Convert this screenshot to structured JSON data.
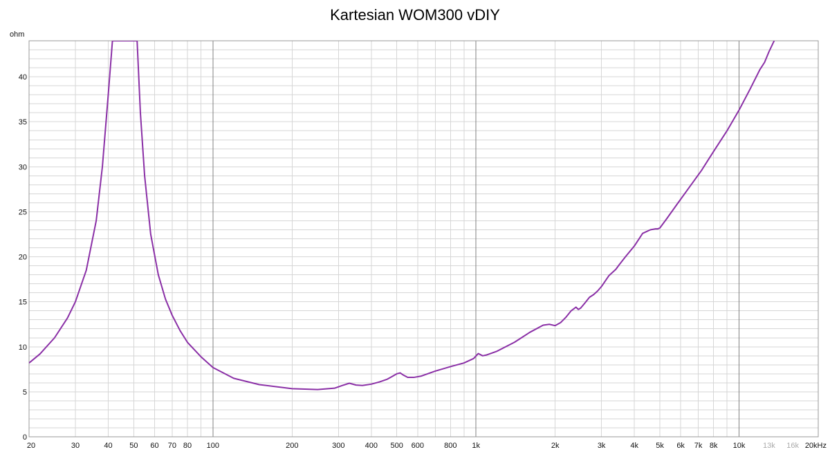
{
  "chart_data": {
    "type": "line",
    "title": "Kartesian WOM300 vDIY",
    "ylabel": "ohm",
    "xlabel": "",
    "x_scale": "log",
    "xlim": [
      20,
      20000
    ],
    "ylim": [
      0,
      44
    ],
    "grid": true,
    "colors": {
      "line": "#8a2fa6",
      "grid": "#d6d6d6",
      "grid_major": "#808080",
      "frame": "#9a9a9a"
    },
    "y_ticks": [
      {
        "v": 0,
        "label": "0"
      },
      {
        "v": 5,
        "label": "5"
      },
      {
        "v": 10,
        "label": "10"
      },
      {
        "v": 15,
        "label": "15"
      },
      {
        "v": 20,
        "label": "20"
      },
      {
        "v": 25,
        "label": "25"
      },
      {
        "v": 30,
        "label": "30"
      },
      {
        "v": 35,
        "label": "35"
      },
      {
        "v": 40,
        "label": "40"
      }
    ],
    "x_ticks": [
      {
        "v": 20,
        "label": "20"
      },
      {
        "v": 30,
        "label": "30"
      },
      {
        "v": 40,
        "label": "40"
      },
      {
        "v": 50,
        "label": "50"
      },
      {
        "v": 60,
        "label": "60"
      },
      {
        "v": 70,
        "label": "70"
      },
      {
        "v": 80,
        "label": "80"
      },
      {
        "v": 100,
        "label": "100"
      },
      {
        "v": 200,
        "label": "200"
      },
      {
        "v": 300,
        "label": "300"
      },
      {
        "v": 400,
        "label": "400"
      },
      {
        "v": 500,
        "label": "500"
      },
      {
        "v": 600,
        "label": "600"
      },
      {
        "v": 800,
        "label": "800"
      },
      {
        "v": 1000,
        "label": "1k"
      },
      {
        "v": 2000,
        "label": "2k"
      },
      {
        "v": 3000,
        "label": "3k"
      },
      {
        "v": 4000,
        "label": "4k"
      },
      {
        "v": 5000,
        "label": "5k"
      },
      {
        "v": 6000,
        "label": "6k"
      },
      {
        "v": 7000,
        "label": "7k"
      },
      {
        "v": 8000,
        "label": "8k"
      },
      {
        "v": 10000,
        "label": "10k"
      },
      {
        "v": 13000,
        "label": "13k",
        "light": true
      },
      {
        "v": 16000,
        "label": "16k",
        "light": true
      },
      {
        "v": 20000,
        "label": "20kHz"
      }
    ],
    "series": [
      {
        "x": [
          20,
          22,
          25,
          28,
          30,
          33,
          36,
          38,
          40,
          41.5,
          51.5,
          53,
          55,
          58,
          62,
          66,
          70,
          75,
          80,
          90,
          100,
          120,
          150,
          200,
          250,
          290,
          310,
          330,
          350,
          370,
          400,
          430,
          460,
          480,
          500,
          515,
          530,
          550,
          580,
          620,
          700,
          800,
          900,
          980,
          1020,
          1060,
          1100,
          1200,
          1400,
          1600,
          1800,
          1900,
          2000,
          2100,
          2200,
          2300,
          2400,
          2450,
          2500,
          2600,
          2700,
          2800,
          2900,
          3000,
          3200,
          3400,
          3500,
          3700,
          4000,
          4300,
          4600,
          4800,
          4900,
          5000,
          5300,
          5800,
          6500,
          7200,
          8000,
          9000,
          10000,
          11000,
          12000,
          12500,
          13000,
          13600
        ],
        "y": [
          8.2,
          9.2,
          11.0,
          13.2,
          15.0,
          18.5,
          24.0,
          30.0,
          38.0,
          44.0,
          44.0,
          36.0,
          29.0,
          22.5,
          18.0,
          15.3,
          13.5,
          11.8,
          10.5,
          8.9,
          7.7,
          6.5,
          5.8,
          5.35,
          5.25,
          5.4,
          5.7,
          5.95,
          5.75,
          5.7,
          5.85,
          6.1,
          6.4,
          6.7,
          7.0,
          7.1,
          6.85,
          6.6,
          6.6,
          6.75,
          7.3,
          7.8,
          8.2,
          8.7,
          9.25,
          9.0,
          9.1,
          9.5,
          10.5,
          11.6,
          12.4,
          12.5,
          12.35,
          12.7,
          13.3,
          14.0,
          14.4,
          14.15,
          14.3,
          14.9,
          15.5,
          15.8,
          16.2,
          16.7,
          17.9,
          18.6,
          19.1,
          20.0,
          21.2,
          22.6,
          23.0,
          23.1,
          23.1,
          23.2,
          24.2,
          25.8,
          27.8,
          29.6,
          31.7,
          34.0,
          36.3,
          38.6,
          40.8,
          41.6,
          42.8,
          44.0
        ]
      }
    ]
  }
}
